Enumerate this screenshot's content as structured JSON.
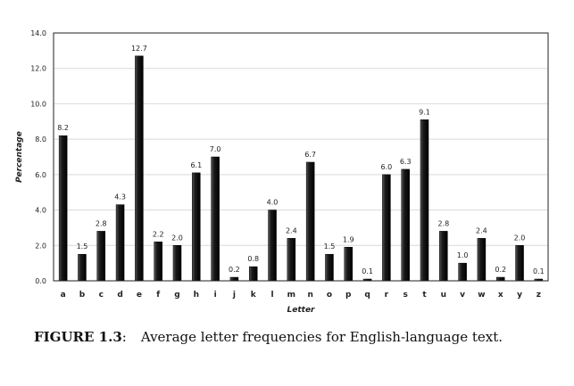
{
  "chart_data": {
    "type": "bar",
    "xlabel": "Letter",
    "ylabel": "Percentage",
    "ylim": [
      0,
      14
    ],
    "yticks": [
      "0.0",
      "2.0",
      "4.0",
      "6.0",
      "8.0",
      "10.0",
      "12.0",
      "14.0"
    ],
    "grid": true,
    "categories": [
      "a",
      "b",
      "c",
      "d",
      "e",
      "f",
      "g",
      "h",
      "i",
      "j",
      "k",
      "l",
      "m",
      "n",
      "o",
      "p",
      "q",
      "r",
      "s",
      "t",
      "u",
      "v",
      "w",
      "x",
      "y",
      "z"
    ],
    "values": [
      8.2,
      1.5,
      2.8,
      4.3,
      12.7,
      2.2,
      2.0,
      6.1,
      7.0,
      0.2,
      0.8,
      4.0,
      2.4,
      6.7,
      1.5,
      1.9,
      0.1,
      6.0,
      6.3,
      9.1,
      2.8,
      1.0,
      2.4,
      0.2,
      2.0,
      0.1
    ],
    "data_labels": [
      "8.2",
      "1.5",
      "2.8",
      "4.3",
      "12.7",
      "2.2",
      "2.0",
      "6.1",
      "7.0",
      "0.2",
      "0.8",
      "4.0",
      "2.4",
      "6.7",
      "1.5",
      "1.9",
      "0.1",
      "6.0",
      "6.3",
      "9.1",
      "2.8",
      "1.0",
      "2.4",
      "0.2",
      "2.0",
      "0.1"
    ],
    "bar_color": "#1e1e1e"
  },
  "caption": {
    "figure_label": "FIGURE 1.3",
    "text": "Average letter frequencies for English-language text."
  }
}
